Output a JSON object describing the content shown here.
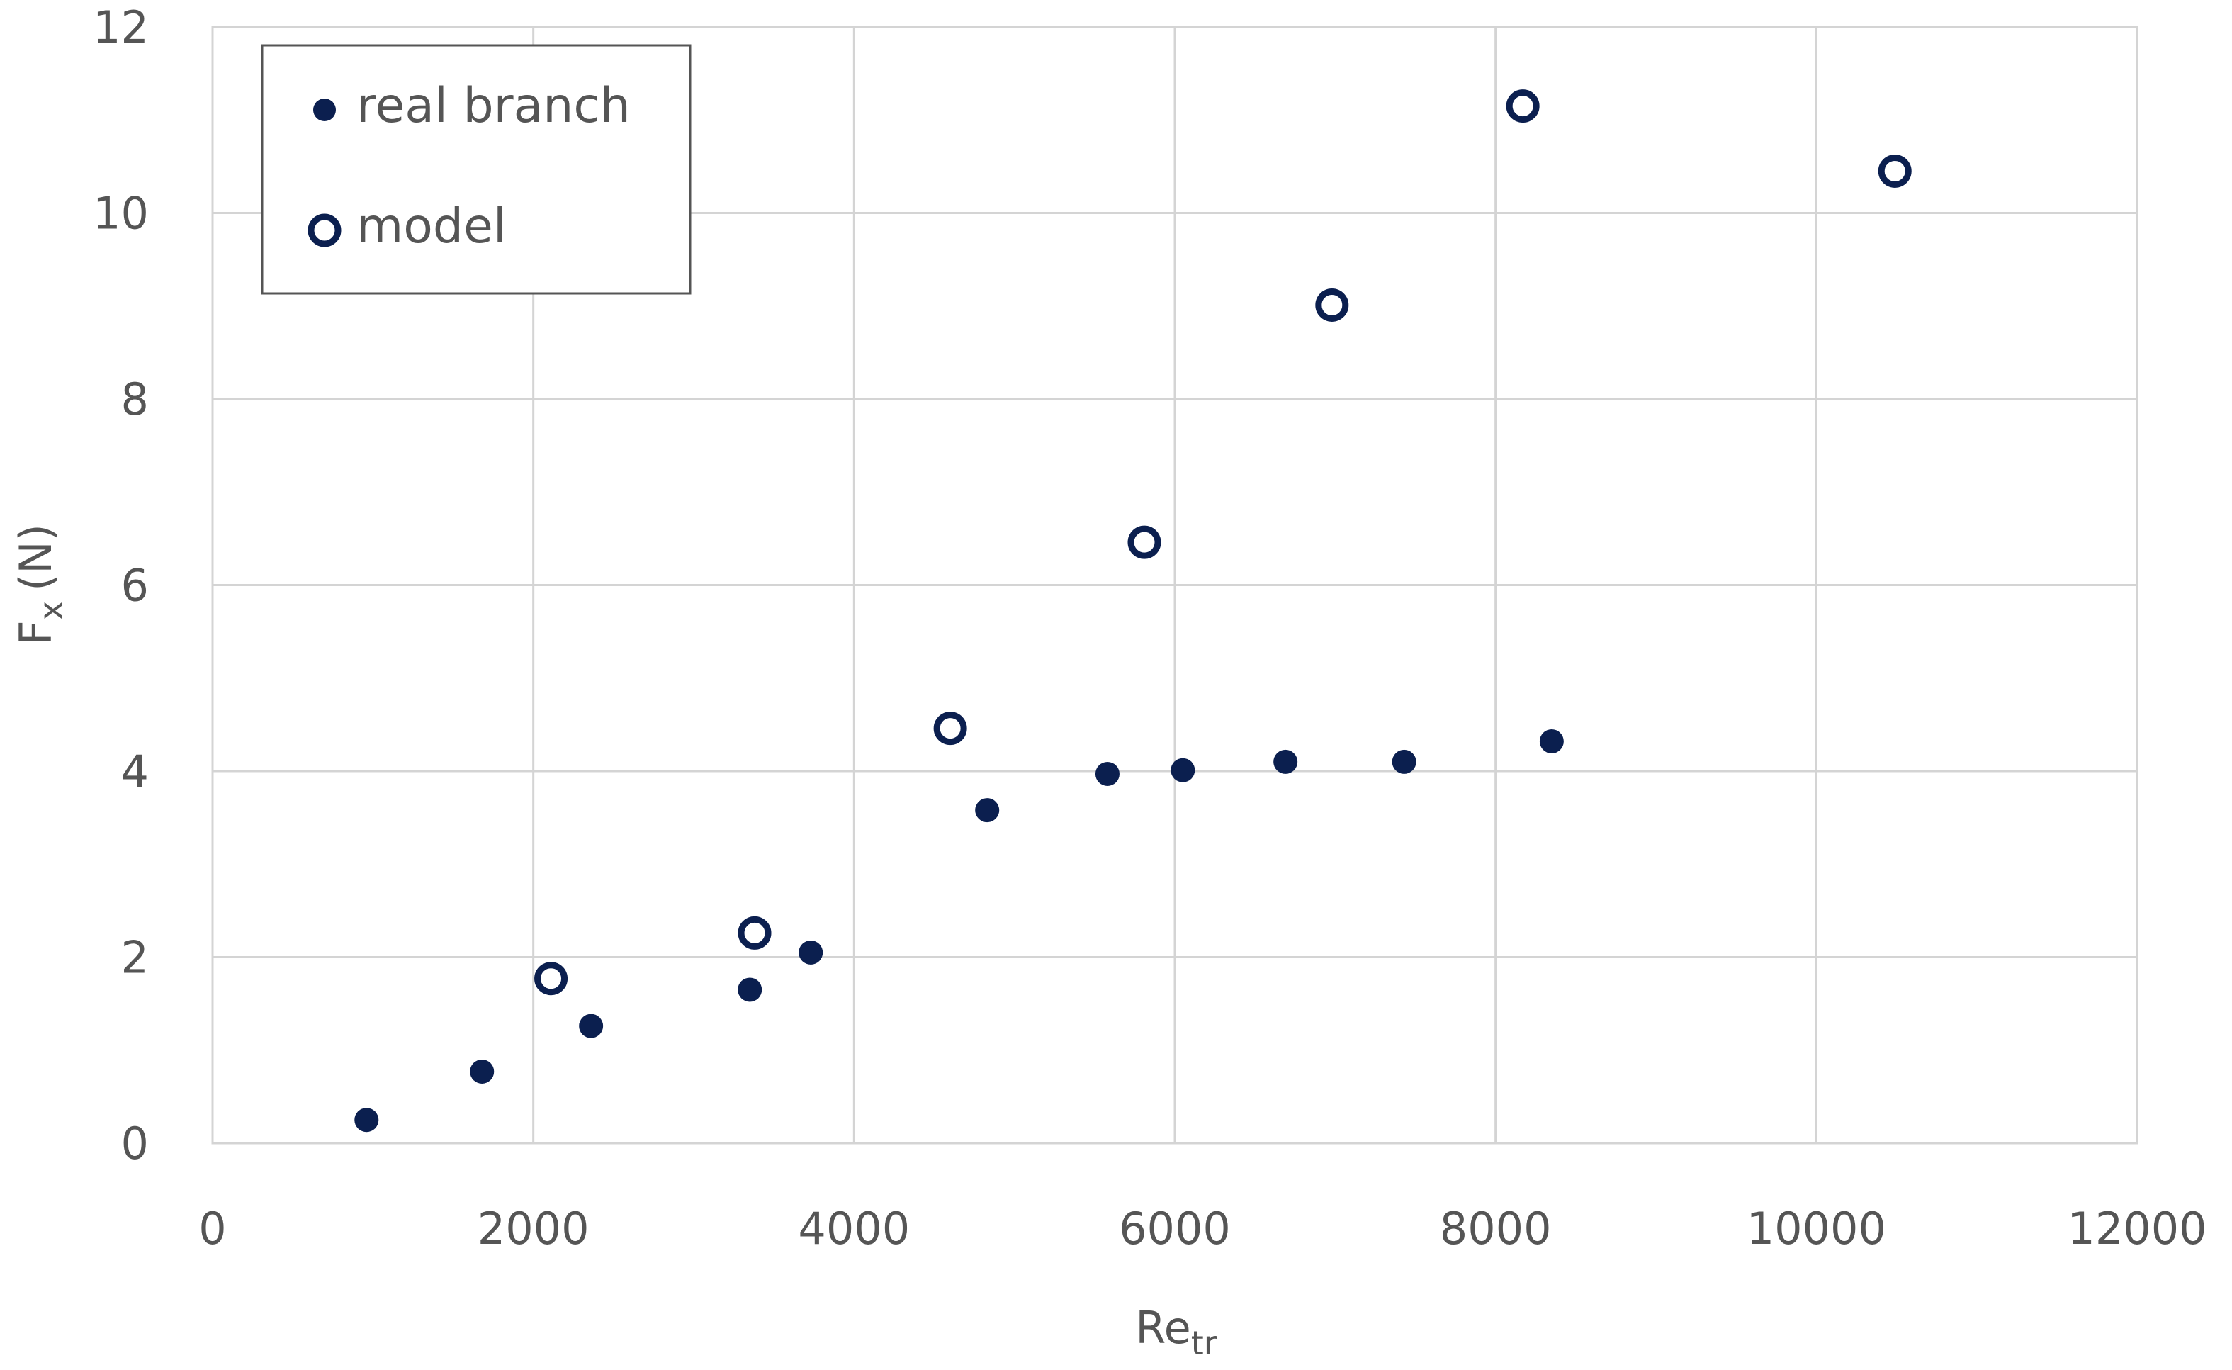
{
  "chart_data": {
    "type": "scatter",
    "title": "",
    "xlabel": "Re",
    "xlabel_subscript": "tr",
    "ylabel": "F",
    "ylabel_subscript": "x",
    "ylabel_suffix": "(N)",
    "xlim": [
      0,
      12000
    ],
    "ylim": [
      0,
      12
    ],
    "xticks": [
      0,
      2000,
      4000,
      6000,
      8000,
      10000,
      12000
    ],
    "yticks": [
      0,
      2,
      4,
      6,
      8,
      10,
      12
    ],
    "grid": true,
    "legend_position": "top-left",
    "colors": {
      "marker": "#0b1f4f",
      "grid": "#d4d4d4",
      "text": "#555555"
    },
    "series": [
      {
        "name": "real branch",
        "marker": "filled-circle",
        "points": [
          {
            "x": 960,
            "y": 0.25
          },
          {
            "x": 1680,
            "y": 0.77
          },
          {
            "x": 2360,
            "y": 1.26
          },
          {
            "x": 3350,
            "y": 1.65
          },
          {
            "x": 3730,
            "y": 2.05
          },
          {
            "x": 4830,
            "y": 3.58
          },
          {
            "x": 5580,
            "y": 3.97
          },
          {
            "x": 6050,
            "y": 4.01
          },
          {
            "x": 6690,
            "y": 4.1
          },
          {
            "x": 7430,
            "y": 4.1
          },
          {
            "x": 8350,
            "y": 4.32
          }
        ]
      },
      {
        "name": "model",
        "marker": "open-circle",
        "points": [
          {
            "x": 2110,
            "y": 1.77
          },
          {
            "x": 3380,
            "y": 2.26
          },
          {
            "x": 4600,
            "y": 4.46
          },
          {
            "x": 5810,
            "y": 6.46
          },
          {
            "x": 6980,
            "y": 9.01
          },
          {
            "x": 8170,
            "y": 11.15
          },
          {
            "x": 10490,
            "y": 10.45
          }
        ]
      }
    ]
  }
}
